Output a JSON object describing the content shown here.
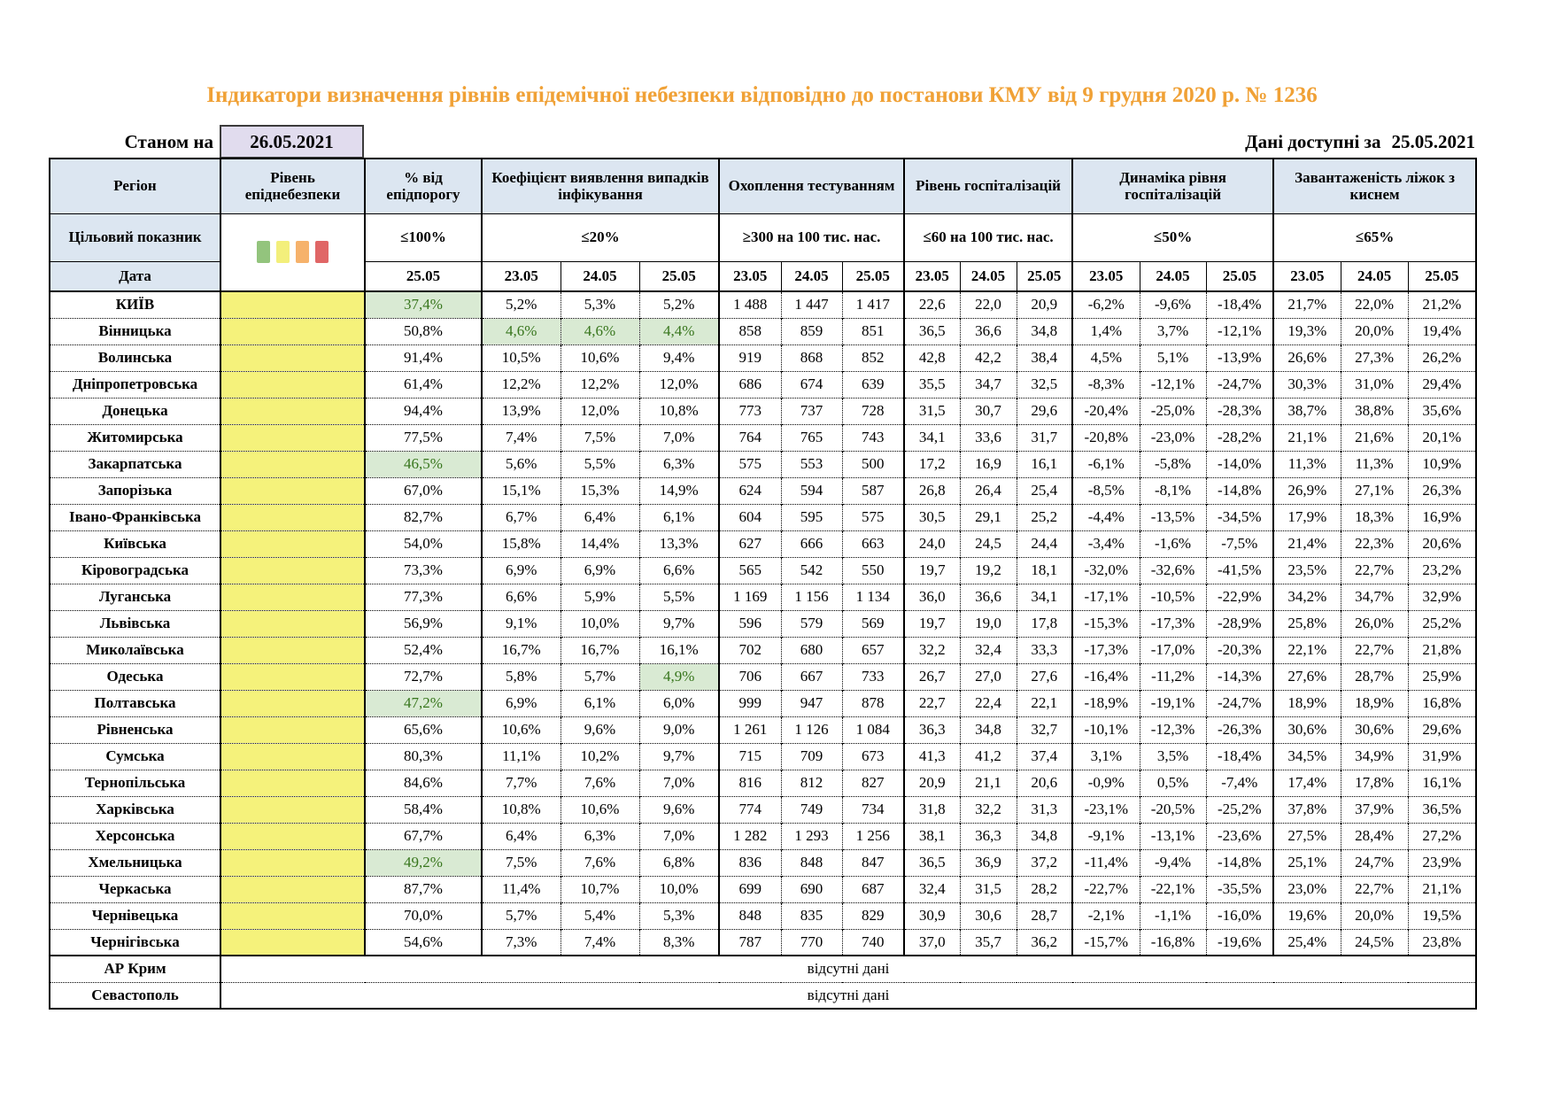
{
  "title": "Індикатори визначення рівнів епідемічної небезпеки відповідно до постанови КМУ від 9 грудня 2020 р. № 1236",
  "as_of": {
    "label": "Станом на",
    "date": "26.05.2021"
  },
  "available": {
    "label": "Дані доступні за",
    "date": "25.05.2021"
  },
  "table": {
    "col_region_label": "Регіон",
    "col_level_label": "Рівень епіднебезпеки",
    "target_row_label": "Цільовий показник",
    "date_row_label": "Дата",
    "no_data_label": "відсутні дані",
    "groups": [
      {
        "key": "pct",
        "label": "% від епідпорогу",
        "target": "≤100%",
        "dates": [
          "25.05"
        ]
      },
      {
        "key": "koef",
        "label": "Коефіцієнт виявлення випадків інфікування",
        "target": "≤20%",
        "dates": [
          "23.05",
          "24.05",
          "25.05"
        ]
      },
      {
        "key": "test",
        "label": "Охоплення тестуванням",
        "target": "≥300 на 100 тис. нас.",
        "dates": [
          "23.05",
          "24.05",
          "25.05"
        ]
      },
      {
        "key": "hosp",
        "label": "Рівень госпіталізацій",
        "target": "≤60 на 100 тис. нас.",
        "dates": [
          "23.05",
          "24.05",
          "25.05"
        ]
      },
      {
        "key": "dyn",
        "label": "Динаміка рівня госпіталізацій",
        "target": "≤50%",
        "dates": [
          "23.05",
          "24.05",
          "25.05"
        ]
      },
      {
        "key": "beds",
        "label": "Завантаженість ліжок з киснем",
        "target": "≤65%",
        "dates": [
          "23.05",
          "24.05",
          "25.05"
        ]
      }
    ],
    "legend_bars": [
      {
        "name": "green",
        "color": "#93c47d"
      },
      {
        "name": "yellow",
        "color": "#f3ef7b"
      },
      {
        "name": "orange",
        "color": "#f6b26b"
      },
      {
        "name": "red",
        "color": "#e06666"
      }
    ],
    "colors": {
      "header_blue": "#dce6f1",
      "level_yellow": "#f5f27b",
      "green_bg": "#d9ead3",
      "green_text": "#38761d",
      "title_orange": "#f0a136",
      "date_box": "#e1dcee"
    }
  },
  "regions": [
    {
      "name": "КИЇВ",
      "pct": "37,4%",
      "pct_green": true,
      "koef": [
        "5,2%",
        "5,3%",
        "5,2%"
      ],
      "test": [
        "1 488",
        "1 447",
        "1 417"
      ],
      "hosp": [
        "22,6",
        "22,0",
        "20,9"
      ],
      "dyn": [
        "-6,2%",
        "-9,6%",
        "-18,4%"
      ],
      "beds": [
        "21,7%",
        "22,0%",
        "21,2%"
      ]
    },
    {
      "name": "Вінницька",
      "pct": "50,8%",
      "koef": [
        "4,6%",
        "4,6%",
        "4,4%"
      ],
      "koef_green": [
        0,
        1,
        2
      ],
      "test": [
        "858",
        "859",
        "851"
      ],
      "hosp": [
        "36,5",
        "36,6",
        "34,8"
      ],
      "dyn": [
        "1,4%",
        "3,7%",
        "-12,1%"
      ],
      "beds": [
        "19,3%",
        "20,0%",
        "19,4%"
      ]
    },
    {
      "name": "Волинська",
      "pct": "91,4%",
      "koef": [
        "10,5%",
        "10,6%",
        "9,4%"
      ],
      "test": [
        "919",
        "868",
        "852"
      ],
      "hosp": [
        "42,8",
        "42,2",
        "38,4"
      ],
      "dyn": [
        "4,5%",
        "5,1%",
        "-13,9%"
      ],
      "beds": [
        "26,6%",
        "27,3%",
        "26,2%"
      ]
    },
    {
      "name": "Дніпропетровська",
      "pct": "61,4%",
      "koef": [
        "12,2%",
        "12,2%",
        "12,0%"
      ],
      "test": [
        "686",
        "674",
        "639"
      ],
      "hosp": [
        "35,5",
        "34,7",
        "32,5"
      ],
      "dyn": [
        "-8,3%",
        "-12,1%",
        "-24,7%"
      ],
      "beds": [
        "30,3%",
        "31,0%",
        "29,4%"
      ]
    },
    {
      "name": "Донецька",
      "pct": "94,4%",
      "koef": [
        "13,9%",
        "12,0%",
        "10,8%"
      ],
      "test": [
        "773",
        "737",
        "728"
      ],
      "hosp": [
        "31,5",
        "30,7",
        "29,6"
      ],
      "dyn": [
        "-20,4%",
        "-25,0%",
        "-28,3%"
      ],
      "beds": [
        "38,7%",
        "38,8%",
        "35,6%"
      ]
    },
    {
      "name": "Житомирська",
      "pct": "77,5%",
      "koef": [
        "7,4%",
        "7,5%",
        "7,0%"
      ],
      "test": [
        "764",
        "765",
        "743"
      ],
      "hosp": [
        "34,1",
        "33,6",
        "31,7"
      ],
      "dyn": [
        "-20,8%",
        "-23,0%",
        "-28,2%"
      ],
      "beds": [
        "21,1%",
        "21,6%",
        "20,1%"
      ]
    },
    {
      "name": "Закарпатська",
      "pct": "46,5%",
      "pct_green": true,
      "koef": [
        "5,6%",
        "5,5%",
        "6,3%"
      ],
      "test": [
        "575",
        "553",
        "500"
      ],
      "hosp": [
        "17,2",
        "16,9",
        "16,1"
      ],
      "dyn": [
        "-6,1%",
        "-5,8%",
        "-14,0%"
      ],
      "beds": [
        "11,3%",
        "11,3%",
        "10,9%"
      ]
    },
    {
      "name": "Запорізька",
      "pct": "67,0%",
      "koef": [
        "15,1%",
        "15,3%",
        "14,9%"
      ],
      "test": [
        "624",
        "594",
        "587"
      ],
      "hosp": [
        "26,8",
        "26,4",
        "25,4"
      ],
      "dyn": [
        "-8,5%",
        "-8,1%",
        "-14,8%"
      ],
      "beds": [
        "26,9%",
        "27,1%",
        "26,3%"
      ]
    },
    {
      "name": "Івано-Франківська",
      "pct": "82,7%",
      "koef": [
        "6,7%",
        "6,4%",
        "6,1%"
      ],
      "test": [
        "604",
        "595",
        "575"
      ],
      "hosp": [
        "30,5",
        "29,1",
        "25,2"
      ],
      "dyn": [
        "-4,4%",
        "-13,5%",
        "-34,5%"
      ],
      "beds": [
        "17,9%",
        "18,3%",
        "16,9%"
      ]
    },
    {
      "name": "Київська",
      "pct": "54,0%",
      "koef": [
        "15,8%",
        "14,4%",
        "13,3%"
      ],
      "test": [
        "627",
        "666",
        "663"
      ],
      "hosp": [
        "24,0",
        "24,5",
        "24,4"
      ],
      "dyn": [
        "-3,4%",
        "-1,6%",
        "-7,5%"
      ],
      "beds": [
        "21,4%",
        "22,3%",
        "20,6%"
      ]
    },
    {
      "name": "Кіровоградська",
      "pct": "73,3%",
      "koef": [
        "6,9%",
        "6,9%",
        "6,6%"
      ],
      "test": [
        "565",
        "542",
        "550"
      ],
      "hosp": [
        "19,7",
        "19,2",
        "18,1"
      ],
      "dyn": [
        "-32,0%",
        "-32,6%",
        "-41,5%"
      ],
      "beds": [
        "23,5%",
        "22,7%",
        "23,2%"
      ]
    },
    {
      "name": "Луганська",
      "pct": "77,3%",
      "koef": [
        "6,6%",
        "5,9%",
        "5,5%"
      ],
      "test": [
        "1 169",
        "1 156",
        "1 134"
      ],
      "hosp": [
        "36,0",
        "36,6",
        "34,1"
      ],
      "dyn": [
        "-17,1%",
        "-10,5%",
        "-22,9%"
      ],
      "beds": [
        "34,2%",
        "34,7%",
        "32,9%"
      ]
    },
    {
      "name": "Львівська",
      "pct": "56,9%",
      "koef": [
        "9,1%",
        "10,0%",
        "9,7%"
      ],
      "test": [
        "596",
        "579",
        "569"
      ],
      "hosp": [
        "19,7",
        "19,0",
        "17,8"
      ],
      "dyn": [
        "-15,3%",
        "-17,3%",
        "-28,9%"
      ],
      "beds": [
        "25,8%",
        "26,0%",
        "25,2%"
      ]
    },
    {
      "name": "Миколаївська",
      "pct": "52,4%",
      "koef": [
        "16,7%",
        "16,7%",
        "16,1%"
      ],
      "test": [
        "702",
        "680",
        "657"
      ],
      "hosp": [
        "32,2",
        "32,4",
        "33,3"
      ],
      "dyn": [
        "-17,3%",
        "-17,0%",
        "-20,3%"
      ],
      "beds": [
        "22,1%",
        "22,7%",
        "21,8%"
      ]
    },
    {
      "name": "Одеська",
      "pct": "72,7%",
      "koef": [
        "5,8%",
        "5,7%",
        "4,9%"
      ],
      "koef_green": [
        2
      ],
      "test": [
        "706",
        "667",
        "733"
      ],
      "hosp": [
        "26,7",
        "27,0",
        "27,6"
      ],
      "dyn": [
        "-16,4%",
        "-11,2%",
        "-14,3%"
      ],
      "beds": [
        "27,6%",
        "28,7%",
        "25,9%"
      ]
    },
    {
      "name": "Полтавська",
      "pct": "47,2%",
      "pct_green": true,
      "koef": [
        "6,9%",
        "6,1%",
        "6,0%"
      ],
      "test": [
        "999",
        "947",
        "878"
      ],
      "hosp": [
        "22,7",
        "22,4",
        "22,1"
      ],
      "dyn": [
        "-18,9%",
        "-19,1%",
        "-24,7%"
      ],
      "beds": [
        "18,9%",
        "18,9%",
        "16,8%"
      ]
    },
    {
      "name": "Рівненська",
      "pct": "65,6%",
      "koef": [
        "10,6%",
        "9,6%",
        "9,0%"
      ],
      "test": [
        "1 261",
        "1 126",
        "1 084"
      ],
      "hosp": [
        "36,3",
        "34,8",
        "32,7"
      ],
      "dyn": [
        "-10,1%",
        "-12,3%",
        "-26,3%"
      ],
      "beds": [
        "30,6%",
        "30,6%",
        "29,6%"
      ]
    },
    {
      "name": "Сумська",
      "pct": "80,3%",
      "koef": [
        "11,1%",
        "10,2%",
        "9,7%"
      ],
      "test": [
        "715",
        "709",
        "673"
      ],
      "hosp": [
        "41,3",
        "41,2",
        "37,4"
      ],
      "dyn": [
        "3,1%",
        "3,5%",
        "-18,4%"
      ],
      "beds": [
        "34,5%",
        "34,9%",
        "31,9%"
      ]
    },
    {
      "name": "Тернопільська",
      "pct": "84,6%",
      "koef": [
        "7,7%",
        "7,6%",
        "7,0%"
      ],
      "test": [
        "816",
        "812",
        "827"
      ],
      "hosp": [
        "20,9",
        "21,1",
        "20,6"
      ],
      "dyn": [
        "-0,9%",
        "0,5%",
        "-7,4%"
      ],
      "beds": [
        "17,4%",
        "17,8%",
        "16,1%"
      ]
    },
    {
      "name": "Харківська",
      "pct": "58,4%",
      "koef": [
        "10,8%",
        "10,6%",
        "9,6%"
      ],
      "test": [
        "774",
        "749",
        "734"
      ],
      "hosp": [
        "31,8",
        "32,2",
        "31,3"
      ],
      "dyn": [
        "-23,1%",
        "-20,5%",
        "-25,2%"
      ],
      "beds": [
        "37,8%",
        "37,9%",
        "36,5%"
      ]
    },
    {
      "name": "Херсонська",
      "pct": "67,7%",
      "koef": [
        "6,4%",
        "6,3%",
        "7,0%"
      ],
      "test": [
        "1 282",
        "1 293",
        "1 256"
      ],
      "hosp": [
        "38,1",
        "36,3",
        "34,8"
      ],
      "dyn": [
        "-9,1%",
        "-13,1%",
        "-23,6%"
      ],
      "beds": [
        "27,5%",
        "28,4%",
        "27,2%"
      ]
    },
    {
      "name": "Хмельницька",
      "pct": "49,2%",
      "pct_green": true,
      "koef": [
        "7,5%",
        "7,6%",
        "6,8%"
      ],
      "test": [
        "836",
        "848",
        "847"
      ],
      "hosp": [
        "36,5",
        "36,9",
        "37,2"
      ],
      "dyn": [
        "-11,4%",
        "-9,4%",
        "-14,8%"
      ],
      "beds": [
        "25,1%",
        "24,7%",
        "23,9%"
      ]
    },
    {
      "name": "Черкаська",
      "pct": "87,7%",
      "koef": [
        "11,4%",
        "10,7%",
        "10,0%"
      ],
      "test": [
        "699",
        "690",
        "687"
      ],
      "hosp": [
        "32,4",
        "31,5",
        "28,2"
      ],
      "dyn": [
        "-22,7%",
        "-22,1%",
        "-35,5%"
      ],
      "beds": [
        "23,0%",
        "22,7%",
        "21,1%"
      ]
    },
    {
      "name": "Чернівецька",
      "pct": "70,0%",
      "koef": [
        "5,7%",
        "5,4%",
        "5,3%"
      ],
      "test": [
        "848",
        "835",
        "829"
      ],
      "hosp": [
        "30,9",
        "30,6",
        "28,7"
      ],
      "dyn": [
        "-2,1%",
        "-1,1%",
        "-16,0%"
      ],
      "beds": [
        "19,6%",
        "20,0%",
        "19,5%"
      ]
    },
    {
      "name": "Чернігівська",
      "pct": "54,6%",
      "koef": [
        "7,3%",
        "7,4%",
        "8,3%"
      ],
      "test": [
        "787",
        "770",
        "740"
      ],
      "hosp": [
        "37,0",
        "35,7",
        "36,2"
      ],
      "dyn": [
        "-15,7%",
        "-16,8%",
        "-19,6%"
      ],
      "beds": [
        "25,4%",
        "24,5%",
        "23,8%"
      ]
    },
    {
      "name": "АР Крим",
      "no_data": true
    },
    {
      "name": "Севастополь",
      "no_data": true
    }
  ]
}
